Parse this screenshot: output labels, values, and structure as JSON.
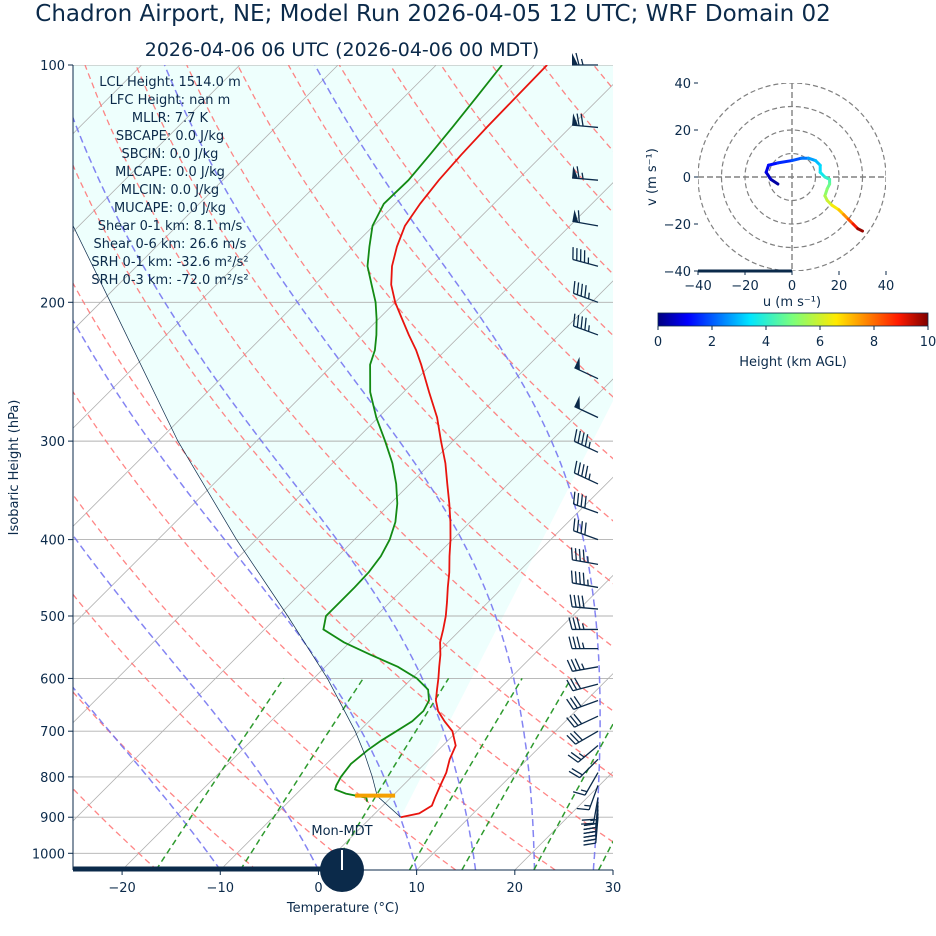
{
  "header": {
    "title": "Chadron Airport, NE; Model Run 2026-04-05 12 UTC; WRF Domain 02",
    "subtitle": "2026-04-06 06 UTC  (2026-04-06 00 MDT)"
  },
  "stats": [
    "LCL Height: 1514.0 m",
    "LFC Height: nan m",
    "MLLR: 7.7 K",
    "SBCAPE: 0.0 J/kg",
    "SBCIN: 0.0 J/kg",
    "MLCAPE: 0.0 J/kg",
    "MLCIN: 0.0 J/kg",
    "MUCAPE: 0.0 J/kg",
    "Shear 0-1 km: 8.1 m/s",
    "Shear 0-6 km: 26.6 m/s",
    "SRH 0-1 km: -32.6 m²/s²",
    "SRH 0-3 km: -72.0 m²/s²"
  ],
  "clock_label": "Mon-MDT",
  "colors": {
    "text": "#0b2a4a",
    "temperature": "#e8140e",
    "dewpoint": "#138a13",
    "dry_adiabat": "#ff7070",
    "moist_adiabat": "#6f6ff0",
    "mixing_ratio": "#2e9a2e",
    "parcel_shade": "#eefffd",
    "wind_barb": "#0b2a4a",
    "lcl_marker": "#f5a000"
  },
  "chart_data": [
    {
      "type": "line",
      "title": "",
      "xlabel": "Temperature (°C)",
      "ylabel": "Isobaric Height (hPa)",
      "skew_t": true,
      "log_y": true,
      "xlim": [
        -25,
        30
      ],
      "ylim": [
        1050,
        100
      ],
      "x_ticks": [
        -20,
        -10,
        0,
        10,
        20,
        30
      ],
      "y_ticks": [
        1000,
        900,
        800,
        700,
        600,
        500,
        400,
        300,
        200,
        100
      ],
      "grid": true,
      "series": [
        {
          "id": "temperature",
          "pressure": [
            900,
            890,
            870,
            850,
            820,
            790,
            760,
            730,
            700,
            680,
            660,
            640,
            620,
            600,
            580,
            560,
            540,
            520,
            500,
            480,
            460,
            440,
            420,
            400,
            380,
            360,
            340,
            320,
            300,
            280,
            260,
            240,
            230,
            220,
            210,
            200,
            190,
            180,
            170,
            160,
            150,
            140,
            130,
            120,
            110,
            100
          ],
          "values": [
            3.0,
            4.5,
            5.0,
            4.5,
            3.8,
            3.1,
            2.1,
            1.3,
            -0.5,
            -2.3,
            -4.0,
            -5.3,
            -6.3,
            -7.3,
            -8.4,
            -9.5,
            -10.8,
            -11.8,
            -12.9,
            -14.2,
            -15.6,
            -17.0,
            -18.6,
            -20.2,
            -22.0,
            -24.0,
            -26.2,
            -28.5,
            -31.2,
            -34.0,
            -37.4,
            -41.0,
            -43.0,
            -45.3,
            -47.6,
            -50.0,
            -52.2,
            -54.0,
            -55.5,
            -56.8,
            -57.5,
            -58.0,
            -58.3,
            -58.5,
            -58.6,
            -58.7
          ]
        },
        {
          "id": "dewpoint",
          "pressure": [
            860,
            850,
            840,
            830,
            820,
            810,
            800,
            790,
            780,
            770,
            760,
            740,
            720,
            700,
            680,
            660,
            640,
            620,
            600,
            580,
            560,
            540,
            520,
            500,
            480,
            460,
            440,
            420,
            400,
            380,
            360,
            340,
            320,
            300,
            280,
            260,
            240,
            230,
            220,
            210,
            200,
            190,
            180,
            170,
            160,
            150,
            140,
            130,
            120,
            110,
            100
          ],
          "values": [
            -2.0,
            -2.5,
            -5.0,
            -6.5,
            -6.8,
            -7.0,
            -7.2,
            -7.3,
            -7.4,
            -7.5,
            -7.4,
            -7.2,
            -6.8,
            -6.2,
            -5.6,
            -5.5,
            -6.0,
            -7.2,
            -9.5,
            -12.6,
            -16.6,
            -20.6,
            -24.0,
            -25.1,
            -25.1,
            -25.1,
            -25.2,
            -25.6,
            -26.4,
            -27.6,
            -29.3,
            -31.4,
            -33.9,
            -36.9,
            -40.2,
            -43.4,
            -46.2,
            -47.2,
            -48.6,
            -50.2,
            -52.0,
            -54.2,
            -56.5,
            -58.3,
            -60.1,
            -61.2,
            -61.1,
            -61.5,
            -62.0,
            -62.6,
            -63.3
          ]
        },
        {
          "id": "parcel",
          "pressure": [
            900,
            850,
            845,
            800,
            750,
            700,
            600,
            500,
            400,
            300,
            200,
            100
          ],
          "values": [
            3.0,
            -1.2,
            -1.6,
            -4.0,
            -7.0,
            -10.4,
            -18.6,
            -29.0,
            -42.0,
            -58.0,
            -79.0,
            -115.0
          ]
        }
      ],
      "lcl": {
        "pressure": 845,
        "temperature": -1.6
      },
      "wind_barbs": {
        "pressure": [
          100,
          120,
          140,
          160,
          180,
          200,
          220,
          250,
          280,
          310,
          340,
          370,
          400,
          430,
          460,
          490,
          520,
          550,
          580,
          610,
          640,
          670,
          700,
          730,
          760,
          790,
          820,
          850,
          860,
          870,
          880,
          890,
          900
        ],
        "speed_kt": [
          65,
          70,
          65,
          60,
          45,
          45,
          45,
          50,
          50,
          45,
          45,
          40,
          40,
          45,
          45,
          40,
          35,
          35,
          35,
          30,
          30,
          30,
          30,
          25,
          20,
          15,
          15,
          20,
          25,
          30,
          30,
          25,
          20
        ],
        "direction_deg": [
          270,
          275,
          275,
          280,
          285,
          290,
          290,
          295,
          295,
          295,
          295,
          290,
          290,
          280,
          280,
          275,
          270,
          270,
          260,
          255,
          250,
          245,
          240,
          230,
          225,
          210,
          200,
          190,
          185,
          185,
          185,
          185,
          185
        ]
      }
    },
    {
      "type": "line",
      "title": "",
      "xlabel": "u (m s⁻¹)",
      "ylabel": "v (m s⁻¹)",
      "xlim": [
        -40,
        40
      ],
      "ylim": [
        -40,
        40
      ],
      "x_ticks": [
        -40,
        -20,
        0,
        20,
        40
      ],
      "y_ticks": [
        -40,
        -20,
        0,
        20,
        40
      ],
      "rings": [
        10,
        20,
        30,
        40
      ],
      "hodograph": {
        "u": [
          -6,
          -9,
          -11,
          -10,
          -6,
          0,
          4,
          7,
          10,
          12,
          12,
          14,
          16,
          16,
          15,
          14,
          15,
          17,
          20,
          22,
          24,
          26,
          28,
          30
        ],
        "v": [
          -3,
          -1,
          2,
          5,
          6,
          7,
          8,
          8,
          7,
          5,
          2,
          0,
          -1,
          -3,
          -5,
          -8,
          -10,
          -12,
          -14,
          -16,
          -18,
          -20,
          -22,
          -23
        ],
        "height_km": [
          0.0,
          0.3,
          0.6,
          0.9,
          1.2,
          1.5,
          1.9,
          2.3,
          2.7,
          3.0,
          3.3,
          3.6,
          4.0,
          4.4,
          4.8,
          5.2,
          5.6,
          6.0,
          6.5,
          7.0,
          7.6,
          8.3,
          9.0,
          9.8
        ]
      }
    },
    {
      "type": "heatmap",
      "title": "",
      "xlabel": "Height (km AGL)",
      "range": [
        0,
        10
      ],
      "ticks": [
        0,
        2,
        4,
        6,
        8,
        10
      ],
      "colormap": "jet"
    }
  ]
}
